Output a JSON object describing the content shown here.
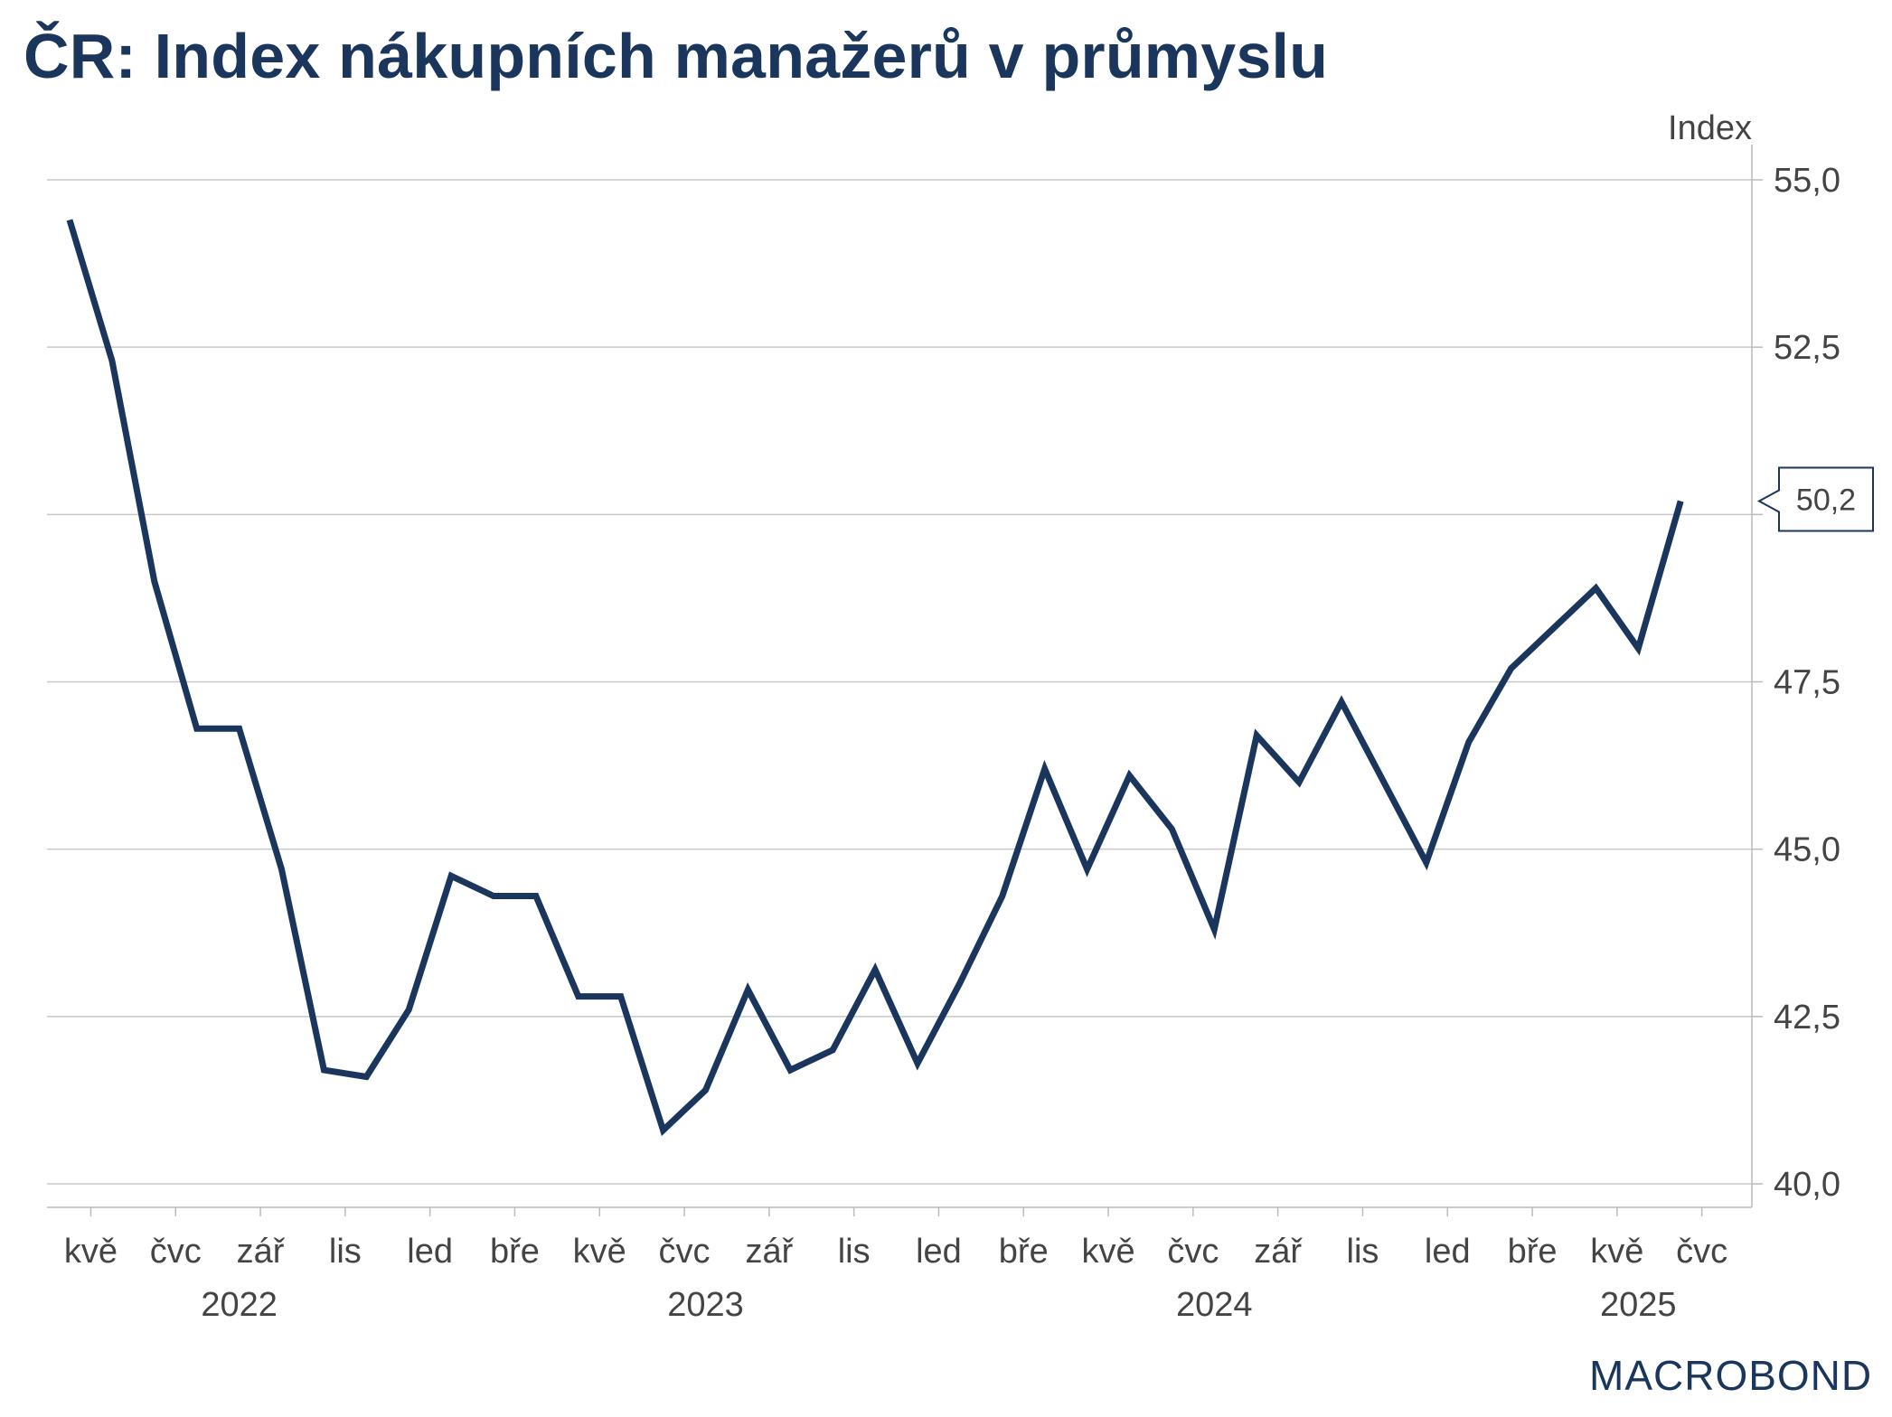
{
  "colors": {
    "title": "#1b365d",
    "series": "#1b365d",
    "grid": "#c8c8c8",
    "axis": "#bbbbbb",
    "text": "#444444"
  },
  "logo": {
    "text": "MACROBOND"
  },
  "chart_data": {
    "type": "line",
    "title": "ČR: Index nákupních manažerů v průmyslu",
    "ylabel": "Index",
    "xlabel": "",
    "ylim": [
      39.6,
      55.6
    ],
    "yticks": [
      40.0,
      42.5,
      45.0,
      47.5,
      50.0,
      52.5,
      55.0
    ],
    "ytick_labels": [
      "40,0",
      "42,5",
      "45,0",
      "47,5",
      "",
      "52,5",
      "55,0"
    ],
    "grid": true,
    "x_start": "2022-04",
    "x_end": "2025-07",
    "month_ticks": [
      {
        "index": 1,
        "label": "kvě"
      },
      {
        "index": 3,
        "label": "čvc"
      },
      {
        "index": 5,
        "label": "zář"
      },
      {
        "index": 7,
        "label": "lis"
      },
      {
        "index": 9,
        "label": "led"
      },
      {
        "index": 11,
        "label": "bře"
      },
      {
        "index": 13,
        "label": "kvě"
      },
      {
        "index": 15,
        "label": "čvc"
      },
      {
        "index": 17,
        "label": "zář"
      },
      {
        "index": 19,
        "label": "lis"
      },
      {
        "index": 21,
        "label": "led"
      },
      {
        "index": 23,
        "label": "bře"
      },
      {
        "index": 25,
        "label": "kvě"
      },
      {
        "index": 27,
        "label": "čvc"
      },
      {
        "index": 29,
        "label": "zář"
      },
      {
        "index": 31,
        "label": "lis"
      },
      {
        "index": 33,
        "label": "led"
      },
      {
        "index": 35,
        "label": "bře"
      },
      {
        "index": 37,
        "label": "kvě"
      },
      {
        "index": 39,
        "label": "čvc"
      }
    ],
    "year_labels": [
      {
        "label": "2022",
        "center": 4.0
      },
      {
        "label": "2023",
        "center": 15.0
      },
      {
        "label": "2024",
        "center": 27.0
      },
      {
        "label": "2025",
        "center": 37.0
      }
    ],
    "series": [
      {
        "name": "Index nákupních manažerů v průmyslu",
        "x": [
          "2022-04",
          "2022-05",
          "2022-06",
          "2022-07",
          "2022-08",
          "2022-09",
          "2022-10",
          "2022-11",
          "2022-12",
          "2023-01",
          "2023-02",
          "2023-03",
          "2023-04",
          "2023-05",
          "2023-06",
          "2023-07",
          "2023-08",
          "2023-09",
          "2023-10",
          "2023-11",
          "2023-12",
          "2024-01",
          "2024-02",
          "2024-03",
          "2024-04",
          "2024-05",
          "2024-06",
          "2024-07",
          "2024-08",
          "2024-09",
          "2024-10",
          "2024-11",
          "2024-12",
          "2025-01",
          "2025-02",
          "2025-03",
          "2025-04",
          "2025-05",
          "2025-06"
        ],
        "values": [
          54.4,
          52.3,
          49.0,
          46.8,
          46.8,
          44.7,
          41.7,
          41.6,
          42.6,
          44.6,
          44.3,
          44.3,
          42.8,
          42.8,
          40.8,
          41.4,
          42.9,
          41.7,
          42.0,
          43.2,
          41.8,
          43.0,
          44.3,
          46.2,
          44.7,
          46.1,
          45.3,
          43.8,
          46.7,
          46.0,
          47.2,
          46.0,
          44.8,
          46.6,
          47.7,
          48.3,
          48.9,
          48.0,
          50.2
        ]
      }
    ],
    "last_value_label": "50,2"
  }
}
